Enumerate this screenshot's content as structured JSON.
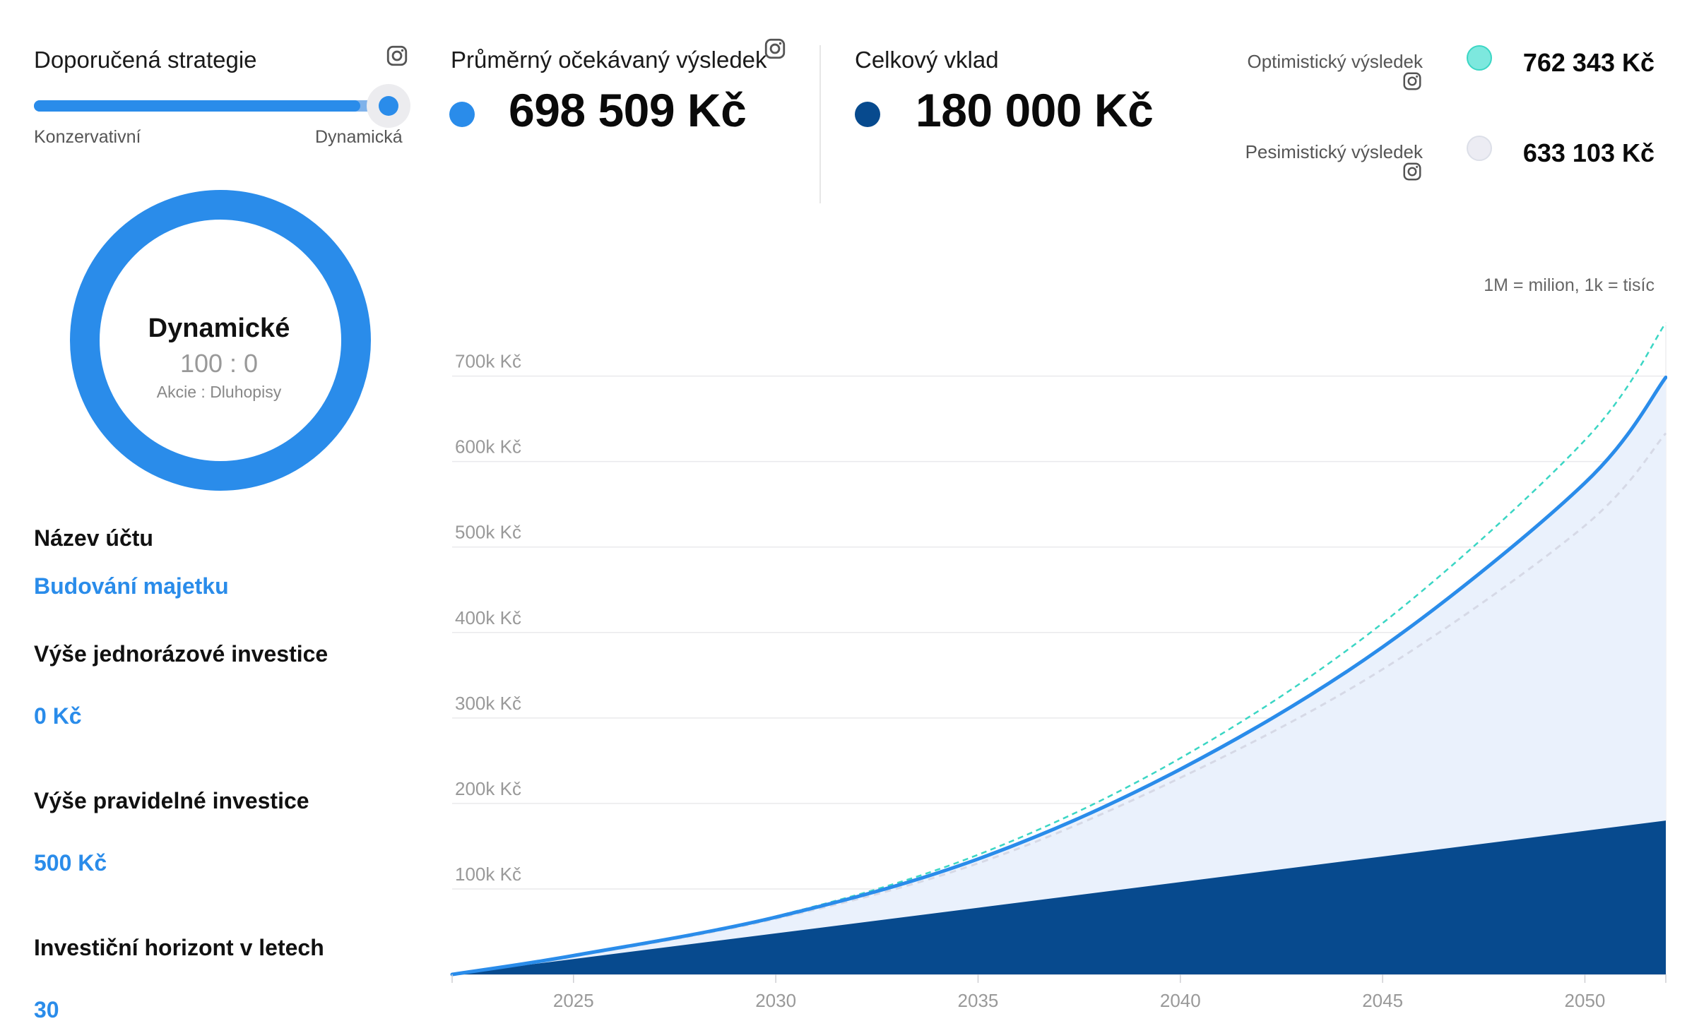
{
  "strategy": {
    "title": "Doporučená strategie",
    "slider_value": 1.0,
    "left_label": "Konzervativní",
    "right_label": "Dynamická"
  },
  "donut": {
    "title": "Dynamické",
    "ratio": "100 : 0",
    "legend": "Akcie : Dluhopisy",
    "color": "#2a8cea"
  },
  "form": {
    "account_name_label": "Název účtu",
    "account_name_value": "Budování majetku",
    "one_time_label": "Výše jednorázové investice",
    "one_time_value": "0  Kč",
    "regular_label": "Výše pravidelné investice",
    "regular_value": "500  Kč",
    "horizon_label": "Investiční horizont v letech",
    "horizon_value": "30"
  },
  "metrics": {
    "expected_label": "Průměrný očekávaný výsledek",
    "expected_value": "698 509 Kč",
    "expected_color": "#2a8cea",
    "deposit_label": "Celkový vklad",
    "deposit_value": "180 000 Kč",
    "deposit_color": "#074a8e"
  },
  "scenarios": {
    "optimistic_label": "Optimistický výsledek",
    "optimistic_value": "762 343 Kč",
    "optimistic_color": "#7de8de",
    "pessimistic_label": "Pesimistický výsledek",
    "pessimistic_value": "633 103 Kč",
    "pessimistic_color": "#ececf3"
  },
  "chart_note": "1M = milion, 1k = tisíc",
  "icons": [
    "instagram-icon"
  ],
  "chart_data": {
    "type": "area",
    "x": [
      2022,
      2025,
      2030,
      2035,
      2040,
      2045,
      2050,
      2052
    ],
    "x_ticks": [
      "2025",
      "2030",
      "2035",
      "2040",
      "2045",
      "2050"
    ],
    "y_ticks": [
      "100k Kč",
      "200k Kč",
      "300k Kč",
      "400k Kč",
      "500k Kč",
      "600k Kč",
      "700k Kč"
    ],
    "xlim": [
      2022,
      2052
    ],
    "ylim": [
      0,
      760000
    ],
    "grid": true,
    "series": [
      {
        "style": "area-dark",
        "color": "#074a8e",
        "values": [
          0,
          18000,
          48000,
          78000,
          108000,
          138000,
          168000,
          180000
        ]
      },
      {
        "style": "line-solid-area-light",
        "color": "#2a8cea",
        "values": [
          0,
          22000,
          67000,
          135000,
          240000,
          383000,
          575000,
          698509
        ]
      },
      {
        "style": "dashed",
        "color": "#3bd6c4",
        "values": [
          0,
          22000,
          68000,
          140000,
          253000,
          411000,
          625000,
          762343
        ]
      },
      {
        "style": "dashed",
        "color": "#d6d9e6",
        "values": [
          0,
          21000,
          65000,
          130000,
          230000,
          357000,
          525000,
          633103
        ]
      }
    ]
  }
}
